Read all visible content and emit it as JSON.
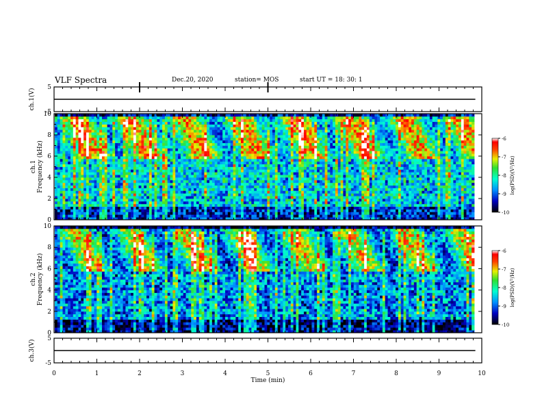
{
  "header": {
    "title": "VLF Spectra",
    "date": "Dec.20, 2020",
    "station": "station= MOS",
    "start_ut": "start  UT  =   18: 30: 1"
  },
  "chart_data": [
    {
      "type": "line",
      "name": "ch1-waveform",
      "ylabel": "ch.1(V)",
      "ytick_labels": [
        "5",
        "-5"
      ],
      "ylim": [
        -5,
        5
      ],
      "x_minutes": [
        0,
        9.85
      ],
      "y_volts": [
        0,
        0
      ]
    },
    {
      "type": "heatmap",
      "name": "ch1-spectrogram",
      "ylabel": "ch.1\nFrequency (kHz)",
      "ylim_khz": [
        0,
        10
      ],
      "ytick_labels": [
        "0",
        "2",
        "4",
        "6",
        "8",
        "10"
      ],
      "colorbar": {
        "label": "log(PSD)(V²/Hz)",
        "range": [
          -10,
          -6
        ],
        "tick_labels": [
          "-6",
          "-7",
          "-8",
          "-9",
          "-10"
        ]
      }
    },
    {
      "type": "heatmap",
      "name": "ch2-spectrogram",
      "ylabel": "ch.2\nFrequency (kHz)",
      "ylim_khz": [
        0,
        10
      ],
      "ytick_labels": [
        "0",
        "2",
        "4",
        "6",
        "8",
        "10"
      ],
      "colorbar": {
        "label": "log(PSD)(V²/Hz)",
        "range": [
          -10,
          -6
        ],
        "tick_labels": [
          "-6",
          "-7",
          "-8",
          "-9",
          "-10"
        ]
      }
    },
    {
      "type": "line",
      "name": "ch3-waveform",
      "ylabel": "ch.3(V)",
      "ytick_labels": [
        "5",
        "-5"
      ],
      "ylim": [
        -5,
        5
      ],
      "x_minutes": [
        0,
        9.85
      ],
      "y_volts": [
        0,
        0
      ]
    }
  ],
  "x_axis": {
    "label": "Time  (min)",
    "xlim": [
      0,
      10
    ],
    "tick_labels": [
      "0",
      "1",
      "2",
      "3",
      "4",
      "5",
      "6",
      "7",
      "8",
      "9",
      "10"
    ]
  }
}
